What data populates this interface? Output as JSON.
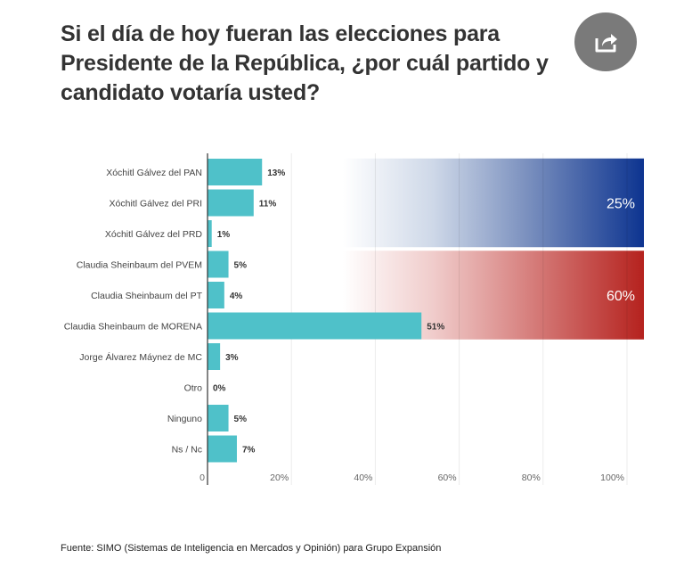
{
  "header": {
    "title": "Si el día de hoy fueran las elecciones para Presidente de la República, ¿por cuál partido y candidato votaría usted?",
    "share_icon": "share-icon"
  },
  "chart_data": {
    "type": "bar",
    "orientation": "horizontal",
    "title": "Si el día de hoy fueran las elecciones para Presidente de la República, ¿por cuál partido y candidato votaría usted?",
    "xlabel": "",
    "ylabel": "",
    "xlim": [
      0,
      100
    ],
    "grid": true,
    "categories": [
      "Xóchitl Gálvez del PAN",
      "Xóchitl Gálvez del PRI",
      "Xóchitl Gálvez del PRD",
      "Claudia Sheinbaum del PVEM",
      "Claudia Sheinbaum del PT",
      "Claudia Sheinbaum de MORENA",
      "Jorge Álvarez Máynez de MC",
      "Otro",
      "Ninguno",
      "Ns / Nc"
    ],
    "values": [
      13,
      11,
      1,
      5,
      4,
      51,
      3,
      0,
      5,
      7
    ],
    "value_labels": [
      "13%",
      "11%",
      "1%",
      "5%",
      "4%",
      "51%",
      "3%",
      "0%",
      "5%",
      "7%"
    ],
    "x_ticks": [
      0,
      20,
      40,
      60,
      80,
      100
    ],
    "x_tick_labels": [
      "0",
      "20%",
      "40%",
      "60%",
      "80%",
      "100%"
    ],
    "bar_color": "#4fc1c9",
    "group_totals": [
      {
        "name": "Xóchitl Gálvez",
        "rows": [
          0,
          2
        ],
        "value": 25,
        "label": "25%",
        "color": "#0d3490"
      },
      {
        "name": "Claudia Sheinbaum",
        "rows": [
          3,
          5
        ],
        "value": 60,
        "label": "60%",
        "color": "#b5221e"
      }
    ]
  },
  "footer": {
    "source": "Fuente: SIMO (Sistemas de Inteligencia en Mercados y Opinión) para Grupo Expansión"
  }
}
